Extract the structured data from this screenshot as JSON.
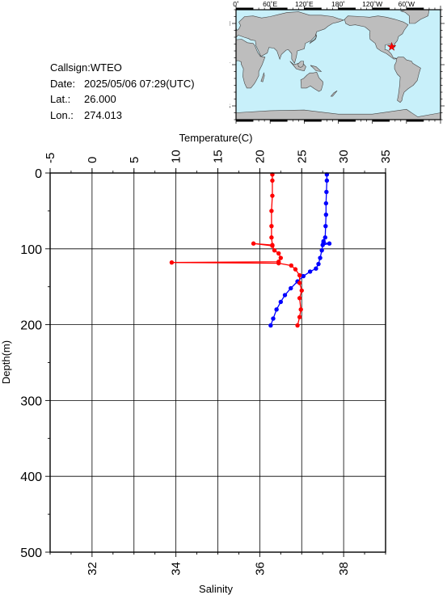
{
  "station": {
    "callsign_label": "Callsign:",
    "callsign": "WTEO",
    "date_label": "Date:",
    "date": "2025/05/06 07:29(UTC)",
    "lat_label": "Lat.:",
    "lat": "26.000",
    "lon_label": "Lon.:",
    "lon": "274.013"
  },
  "map": {
    "top_labels": [
      "0˚",
      "60˚E",
      "120˚E",
      "180˚",
      "120˚W",
      "60˚W"
    ],
    "left_labels": [
      "60˚N",
      "0˚",
      "60˚S"
    ],
    "ocean_color": "#c8f0fa",
    "land_color": "#bdbdbd",
    "marker_color": "#ff0000",
    "marker": {
      "lon": 274.013,
      "lat": 26.0
    }
  },
  "chart_data": {
    "type": "line",
    "grid": true,
    "y": {
      "label": "Depth(m)",
      "range": [
        0,
        500
      ],
      "reversed": true,
      "ticks": [
        0,
        100,
        200,
        300,
        400,
        500
      ]
    },
    "x_top": {
      "label": "Temperature(C)",
      "range": [
        -5,
        35
      ],
      "ticks": [
        -5,
        0,
        5,
        10,
        15,
        20,
        25,
        30,
        35
      ]
    },
    "x_bottom": {
      "label": "Salinity",
      "range": [
        31,
        39
      ],
      "ticks": [
        32,
        34,
        36,
        38
      ]
    },
    "series": [
      {
        "variable": "temperature",
        "axis": "top",
        "color": "#0000ff",
        "points": [
          [
            28.0,
            2
          ],
          [
            28.0,
            10
          ],
          [
            27.95,
            25
          ],
          [
            27.9,
            40
          ],
          [
            27.9,
            55
          ],
          [
            27.85,
            70
          ],
          [
            27.8,
            85
          ],
          [
            27.6,
            90
          ],
          [
            27.6,
            92
          ],
          [
            28.3,
            93
          ],
          [
            27.5,
            95
          ],
          [
            27.4,
            102
          ],
          [
            27.2,
            112
          ],
          [
            27.0,
            120
          ],
          [
            26.7,
            126
          ],
          [
            26.0,
            130
          ],
          [
            25.2,
            136
          ],
          [
            24.5,
            143
          ],
          [
            23.7,
            152
          ],
          [
            23.0,
            161
          ],
          [
            22.5,
            170
          ],
          [
            22.0,
            180
          ],
          [
            21.6,
            192
          ],
          [
            21.3,
            201
          ]
        ]
      },
      {
        "variable": "salinity",
        "axis": "bottom",
        "color": "#ff0000",
        "points": [
          [
            36.3,
            2
          ],
          [
            36.3,
            10
          ],
          [
            36.3,
            30
          ],
          [
            36.28,
            50
          ],
          [
            36.28,
            70
          ],
          [
            36.28,
            85
          ],
          [
            36.3,
            95
          ],
          [
            35.85,
            93
          ],
          [
            36.3,
            96
          ],
          [
            36.35,
            102
          ],
          [
            36.45,
            106
          ],
          [
            36.5,
            112
          ],
          [
            36.45,
            117
          ],
          [
            33.9,
            118
          ],
          [
            36.45,
            119
          ],
          [
            36.75,
            122
          ],
          [
            36.85,
            127
          ],
          [
            36.95,
            135
          ],
          [
            36.95,
            145
          ],
          [
            37.0,
            155
          ],
          [
            36.95,
            165
          ],
          [
            36.98,
            180
          ],
          [
            36.95,
            190
          ],
          [
            36.9,
            201
          ]
        ]
      }
    ]
  }
}
